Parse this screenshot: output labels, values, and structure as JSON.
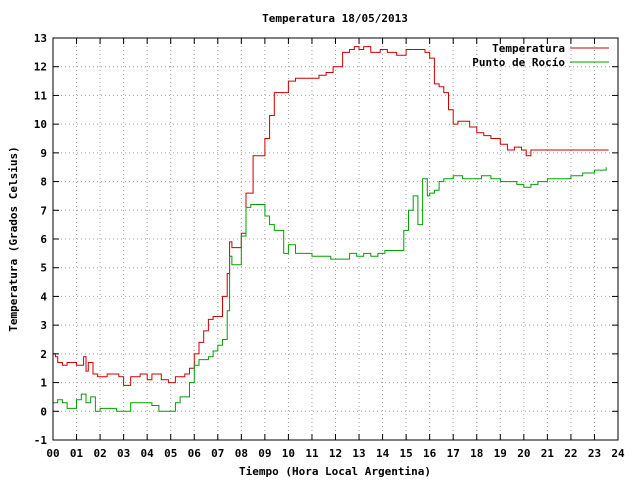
{
  "chart_data": {
    "type": "line",
    "title": "Temperatura 18/05/2013",
    "xlabel": "Tiempo (Hora Local Argentina)",
    "ylabel": "Temperatura (Grados Celsius)",
    "xlim": [
      0,
      24
    ],
    "ylim": [
      -1,
      13
    ],
    "xticks": [
      "00",
      "01",
      "02",
      "03",
      "04",
      "05",
      "06",
      "07",
      "08",
      "09",
      "10",
      "11",
      "12",
      "13",
      "14",
      "15",
      "16",
      "17",
      "18",
      "19",
      "20",
      "21",
      "22",
      "23",
      "24"
    ],
    "yticks": [
      "-1",
      "0",
      "1",
      "2",
      "3",
      "4",
      "5",
      "6",
      "7",
      "8",
      "9",
      "10",
      "11",
      "12",
      "13"
    ],
    "grid": true,
    "legend_position": "top-right",
    "series": [
      {
        "name": "Temperatura",
        "color": "#cc0000",
        "x": [
          0,
          0.1,
          0.2,
          0.4,
          0.6,
          1.0,
          1.3,
          1.4,
          1.5,
          1.7,
          1.9,
          2.3,
          2.8,
          3.0,
          3.3,
          3.7,
          4.0,
          4.2,
          4.4,
          4.6,
          4.9,
          5.0,
          5.2,
          5.4,
          5.6,
          5.8,
          6.0,
          6.2,
          6.4,
          6.6,
          6.8,
          7.0,
          7.2,
          7.4,
          7.5,
          7.6,
          7.8,
          8.0,
          8.2,
          8.5,
          8.8,
          9.0,
          9.2,
          9.4,
          9.6,
          9.8,
          10.0,
          10.3,
          10.5,
          10.8,
          11.0,
          11.3,
          11.6,
          11.9,
          12.3,
          12.6,
          12.8,
          13.0,
          13.2,
          13.5,
          13.9,
          14.2,
          14.6,
          15.0,
          15.4,
          15.8,
          16.0,
          16.2,
          16.4,
          16.6,
          16.8,
          17.0,
          17.2,
          17.4,
          17.7,
          18.0,
          18.3,
          18.6,
          19.0,
          19.3,
          19.6,
          19.9,
          20.1,
          20.3,
          21.0,
          22.0,
          23.0,
          23.6
        ],
        "values": [
          2.0,
          1.9,
          1.7,
          1.6,
          1.7,
          1.6,
          1.9,
          1.4,
          1.7,
          1.3,
          1.2,
          1.3,
          1.2,
          0.9,
          1.2,
          1.3,
          1.1,
          1.3,
          1.3,
          1.1,
          1.0,
          1.0,
          1.2,
          1.2,
          1.3,
          1.5,
          2.0,
          2.4,
          2.8,
          3.2,
          3.3,
          3.3,
          4.0,
          4.8,
          5.9,
          5.7,
          5.7,
          6.2,
          7.6,
          8.9,
          8.9,
          9.5,
          10.3,
          11.1,
          11.1,
          11.1,
          11.5,
          11.6,
          11.6,
          11.6,
          11.6,
          11.7,
          11.8,
          12.0,
          12.5,
          12.6,
          12.7,
          12.6,
          12.7,
          12.5,
          12.6,
          12.5,
          12.4,
          12.6,
          12.6,
          12.5,
          12.3,
          11.4,
          11.3,
          11.1,
          10.5,
          10.0,
          10.1,
          10.1,
          9.9,
          9.7,
          9.6,
          9.5,
          9.3,
          9.1,
          9.2,
          9.1,
          8.9,
          9.1,
          9.1,
          9.1,
          9.1,
          9.1
        ]
      },
      {
        "name": "Punto de Rocío",
        "color": "#00a000",
        "x": [
          0,
          0.2,
          0.4,
          0.6,
          0.8,
          1.0,
          1.2,
          1.4,
          1.6,
          1.8,
          2.0,
          2.3,
          2.7,
          3.0,
          3.3,
          3.6,
          3.9,
          4.2,
          4.5,
          4.8,
          5.0,
          5.2,
          5.4,
          5.6,
          5.8,
          6.0,
          6.2,
          6.4,
          6.6,
          6.8,
          7.0,
          7.2,
          7.4,
          7.5,
          7.6,
          7.8,
          8.0,
          8.2,
          8.4,
          8.6,
          8.8,
          9.0,
          9.2,
          9.4,
          9.6,
          9.8,
          10.0,
          10.3,
          10.6,
          11.0,
          11.4,
          11.8,
          12.0,
          12.3,
          12.6,
          12.9,
          13.2,
          13.5,
          13.8,
          14.1,
          14.4,
          14.7,
          14.9,
          15.1,
          15.3,
          15.5,
          15.7,
          15.9,
          16.0,
          16.2,
          16.4,
          16.6,
          17.0,
          17.4,
          17.8,
          18.2,
          18.6,
          19.0,
          19.4,
          19.7,
          20.0,
          20.3,
          20.6,
          21.0,
          21.5,
          22.0,
          22.5,
          23.0,
          23.5
        ],
        "values": [
          0.3,
          0.4,
          0.3,
          0.1,
          0.1,
          0.4,
          0.6,
          0.3,
          0.5,
          0.0,
          0.1,
          0.1,
          0.0,
          0.0,
          0.3,
          0.3,
          0.3,
          0.2,
          0.0,
          0.0,
          0.0,
          0.3,
          0.5,
          0.5,
          1.0,
          1.6,
          1.8,
          1.8,
          1.9,
          2.1,
          2.3,
          2.5,
          3.5,
          5.4,
          5.1,
          5.1,
          6.1,
          7.1,
          7.2,
          7.2,
          7.2,
          6.8,
          6.5,
          6.3,
          6.3,
          5.5,
          5.8,
          5.5,
          5.5,
          5.4,
          5.4,
          5.3,
          5.3,
          5.3,
          5.5,
          5.4,
          5.5,
          5.4,
          5.5,
          5.6,
          5.6,
          5.6,
          6.3,
          7.0,
          7.5,
          6.5,
          8.1,
          7.5,
          7.6,
          7.7,
          8.0,
          8.1,
          8.2,
          8.1,
          8.1,
          8.2,
          8.1,
          8.0,
          8.0,
          7.9,
          7.8,
          7.9,
          8.0,
          8.1,
          8.1,
          8.2,
          8.3,
          8.4,
          8.5
        ]
      }
    ]
  }
}
